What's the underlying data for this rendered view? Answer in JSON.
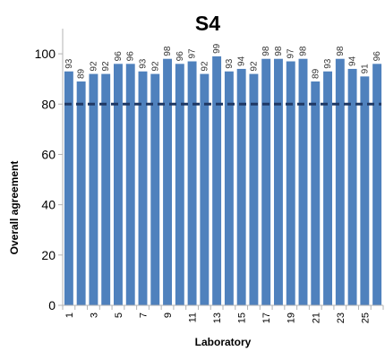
{
  "chart_data": {
    "type": "bar",
    "title": "S4",
    "xlabel": "Laboratory",
    "ylabel": "Overall agreement",
    "ylim": [
      0,
      110
    ],
    "yticks": [
      0,
      20,
      40,
      60,
      80,
      100
    ],
    "categories": [
      "1",
      "2",
      "3",
      "4",
      "5",
      "6",
      "7",
      "8",
      "9",
      "10",
      "11",
      "12",
      "13",
      "14",
      "15",
      "16",
      "17",
      "18",
      "19",
      "20",
      "21",
      "22",
      "23",
      "24",
      "25",
      "26"
    ],
    "xtick_labels": [
      "1",
      "3",
      "5",
      "7",
      "9",
      "11",
      "13",
      "15",
      "17",
      "19",
      "21",
      "23",
      "25"
    ],
    "values": [
      93,
      89,
      92,
      92,
      96,
      96,
      93,
      92,
      98,
      96,
      97,
      92,
      99,
      93,
      94,
      92,
      98,
      98,
      97,
      98,
      89,
      93,
      98,
      94,
      91,
      96
    ],
    "data_labels": [
      "93",
      "89",
      "92",
      "92",
      "96",
      "96",
      "93",
      "92",
      "98",
      "96",
      "97",
      "92",
      "99",
      "93",
      "94",
      "92",
      "98",
      "98",
      "97",
      "98",
      "89",
      "93",
      "98",
      "94",
      "91",
      "96"
    ],
    "reference_line": {
      "value": 80,
      "style": "dashed",
      "color": "#1f3864"
    },
    "bar_color": "#4f81bd",
    "grid": false,
    "legend": "none"
  }
}
